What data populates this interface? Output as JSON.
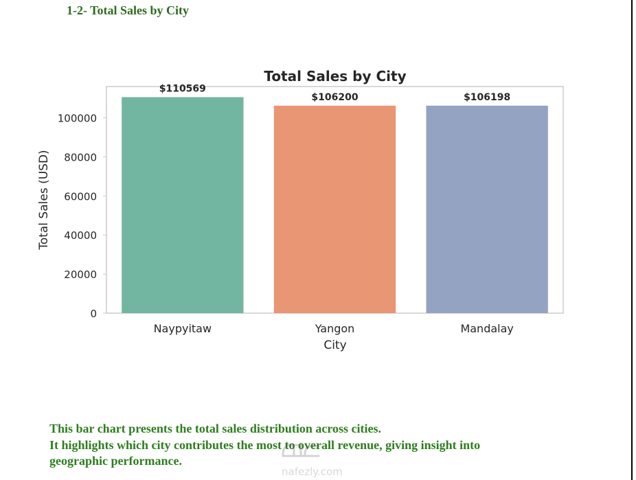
{
  "section_heading": "1-2- Total Sales by City",
  "chart_data": {
    "type": "bar",
    "title": "Total Sales by City",
    "xlabel": "City",
    "ylabel": "Total Sales (USD)",
    "categories": [
      "Naypyitaw",
      "Yangon",
      "Mandalay"
    ],
    "values": [
      110569,
      106200,
      106198
    ],
    "data_labels": [
      "$110569",
      "$106200",
      "$106198"
    ],
    "colors": [
      "#72b6a1",
      "#e99675",
      "#95a3c3"
    ],
    "ylim": [
      0,
      116000
    ],
    "yticks": [
      0,
      20000,
      40000,
      60000,
      80000,
      100000
    ],
    "ytick_labels": [
      "0",
      "20000",
      "40000",
      "60000",
      "80000",
      "100000"
    ],
    "grid": false,
    "legend": "none"
  },
  "caption": {
    "lines": [
      "This bar chart presents the total sales distribution across cities.",
      "It highlights which city contributes the most to overall revenue, giving insight into",
      "geographic performance."
    ]
  },
  "watermark": {
    "text": "nafezly.com",
    "icon": "nafezly-logo"
  }
}
